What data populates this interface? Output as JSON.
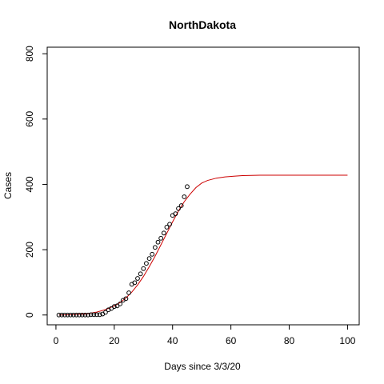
{
  "chart_data": {
    "type": "scatter",
    "title": "NorthDakota",
    "xlabel": "Days since 3/3/20",
    "ylabel": "Cases",
    "xlim": [
      -3,
      104
    ],
    "ylim": [
      -30,
      820
    ],
    "xticks": [
      0,
      20,
      40,
      60,
      80,
      100
    ],
    "yticks": [
      0,
      200,
      400,
      600,
      800
    ],
    "grid": false,
    "colors": {
      "points": "#000000",
      "fit": "#cc0000",
      "axis": "#000000"
    },
    "series": [
      {
        "type": "scatter",
        "x": [
          1,
          2,
          3,
          4,
          5,
          6,
          7,
          8,
          9,
          10,
          11,
          12,
          13,
          14,
          15,
          16,
          17,
          18,
          19,
          20,
          21,
          22,
          23,
          24,
          25,
          26,
          27,
          28,
          29,
          30,
          31,
          32,
          33,
          34,
          35,
          36,
          37,
          38,
          39,
          40,
          41,
          42,
          43,
          44,
          45
        ],
        "y": [
          0,
          0,
          0,
          0,
          0,
          0,
          0,
          0,
          0,
          0,
          0,
          1,
          1,
          1,
          1,
          3,
          8,
          16,
          20,
          26,
          28,
          34,
          45,
          50,
          68,
          94,
          99,
          112,
          126,
          142,
          158,
          173,
          186,
          207,
          223,
          235,
          251,
          269,
          278,
          305,
          310,
          326,
          335,
          362,
          393
        ]
      },
      {
        "type": "line",
        "x": [
          1,
          5,
          10,
          14,
          16,
          18,
          20,
          22,
          24,
          26,
          28,
          30,
          32,
          34,
          36,
          38,
          40,
          42,
          44,
          46,
          48,
          50,
          52,
          55,
          58,
          61,
          64,
          70,
          80,
          90,
          100
        ],
        "y": [
          0,
          1,
          3,
          9,
          14,
          20,
          28,
          38,
          52,
          70,
          92,
          118,
          148,
          180,
          215,
          250,
          285,
          318,
          347,
          370,
          390,
          404,
          412,
          419,
          423,
          425,
          427,
          428,
          428,
          428,
          428
        ]
      }
    ]
  }
}
